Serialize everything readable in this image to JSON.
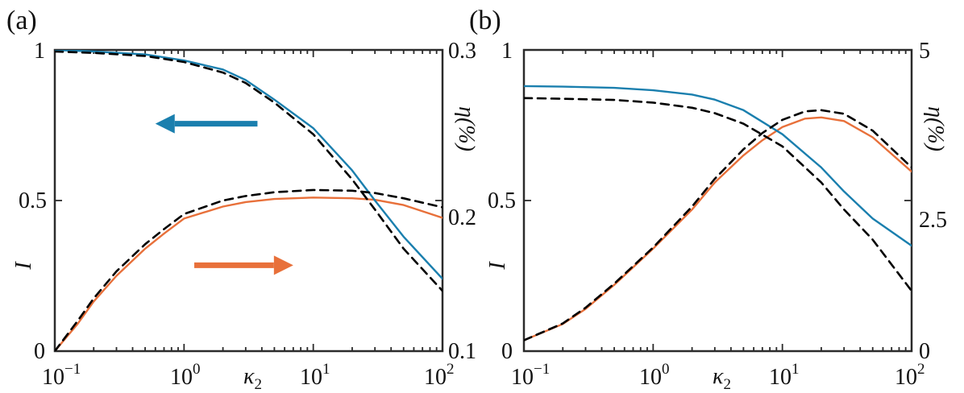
{
  "colors": {
    "blue": "#1a7fae",
    "orange": "#e8703a",
    "dashed": "#000000",
    "axis": "#2b2b2b"
  },
  "chart_data": [
    {
      "panel_label": "(a)",
      "type": "line",
      "xscale": "log",
      "xlim": [
        0.1,
        100
      ],
      "xlabel": "κ",
      "xlabel_sub": "2",
      "x_ticks": [
        {
          "value": 0.1,
          "base": "10",
          "exp": "−1"
        },
        {
          "value": 1,
          "base": "10",
          "exp": "0"
        },
        {
          "value": 10,
          "base": "10",
          "exp": "1"
        },
        {
          "value": 100,
          "base": "10",
          "exp": "2"
        }
      ],
      "left_axis": {
        "label": "I",
        "ylim": [
          0,
          1
        ],
        "ticks": [
          {
            "value": 0,
            "label": "0"
          },
          {
            "value": 0.5,
            "label": "0.5"
          },
          {
            "value": 1,
            "label": "1"
          }
        ]
      },
      "right_axis": {
        "label": "η(%)",
        "ylim": [
          0.1,
          0.3
        ],
        "ticks": [
          {
            "value": 0.1,
            "label": "0.1"
          },
          {
            "value": 0.2,
            "label": "0.2"
          },
          {
            "value": 0.3,
            "label": "0.3"
          }
        ]
      },
      "series": [
        {
          "name": "I (solid)",
          "axis": "left",
          "color": "blue",
          "style": "solid",
          "x": [
            0.1,
            0.2,
            0.5,
            1,
            2,
            3,
            5,
            10,
            20,
            30,
            50,
            100
          ],
          "y": [
            1.0,
            0.995,
            0.985,
            0.965,
            0.935,
            0.9,
            0.835,
            0.74,
            0.6,
            0.5,
            0.38,
            0.24
          ]
        },
        {
          "name": "I (dashed)",
          "axis": "left",
          "color": "dashed",
          "style": "dashed",
          "x": [
            0.1,
            0.2,
            0.5,
            1,
            2,
            3,
            5,
            10,
            20,
            30,
            50,
            100
          ],
          "y": [
            0.995,
            0.99,
            0.98,
            0.96,
            0.925,
            0.89,
            0.825,
            0.72,
            0.57,
            0.47,
            0.34,
            0.2
          ]
        },
        {
          "name": "η (solid)",
          "axis": "right",
          "color": "orange",
          "style": "solid",
          "x": [
            0.1,
            0.15,
            0.2,
            0.3,
            0.5,
            0.7,
            1,
            2,
            3,
            5,
            10,
            20,
            30,
            50,
            100
          ],
          "y": [
            0.1,
            0.118,
            0.133,
            0.15,
            0.168,
            0.178,
            0.188,
            0.196,
            0.199,
            0.201,
            0.202,
            0.2015,
            0.2005,
            0.197,
            0.1885
          ]
        },
        {
          "name": "η (dashed)",
          "axis": "right",
          "color": "dashed",
          "style": "dashed",
          "x": [
            0.1,
            0.15,
            0.2,
            0.3,
            0.5,
            0.7,
            1,
            2,
            3,
            5,
            10,
            20,
            30,
            50,
            100
          ],
          "y": [
            0.1,
            0.12,
            0.135,
            0.153,
            0.171,
            0.181,
            0.191,
            0.2,
            0.203,
            0.2055,
            0.207,
            0.2065,
            0.205,
            0.2015,
            0.1955
          ]
        }
      ],
      "arrows": [
        {
          "name": "left-axis-arrow",
          "color": "blue",
          "direction": "left",
          "from": {
            "x": 3.7,
            "y": 0.755
          },
          "to": {
            "x": 0.6,
            "y": 0.755
          }
        },
        {
          "name": "right-axis-arrow",
          "color": "orange",
          "direction": "right",
          "from": {
            "x": 1.2,
            "y": 0.285
          },
          "to": {
            "x": 7.0,
            "y": 0.285
          }
        }
      ]
    },
    {
      "panel_label": "(b)",
      "type": "line",
      "xscale": "log",
      "xlim": [
        0.1,
        100
      ],
      "xlabel": "κ",
      "xlabel_sub": "2",
      "x_ticks": [
        {
          "value": 0.1,
          "base": "10",
          "exp": "−1"
        },
        {
          "value": 1,
          "base": "10",
          "exp": "0"
        },
        {
          "value": 10,
          "base": "10",
          "exp": "1"
        },
        {
          "value": 100,
          "base": "10",
          "exp": "2"
        }
      ],
      "left_axis": {
        "label": "I",
        "ylim": [
          0,
          1
        ],
        "ticks": [
          {
            "value": 0,
            "label": "0"
          },
          {
            "value": 0.5,
            "label": "0.5"
          },
          {
            "value": 1,
            "label": "1"
          }
        ]
      },
      "right_axis": {
        "label": "η(%)",
        "ylim": [
          0,
          5
        ],
        "ticks": [
          {
            "value": 0,
            "label": "0"
          },
          {
            "value": 2.5,
            "label": "2.5"
          },
          {
            "value": 5,
            "label": "5"
          }
        ]
      },
      "series": [
        {
          "name": "I (solid)",
          "axis": "left",
          "color": "blue",
          "style": "solid",
          "x": [
            0.1,
            0.2,
            0.5,
            1,
            2,
            3,
            5,
            10,
            20,
            30,
            50,
            100
          ],
          "y": [
            0.88,
            0.878,
            0.874,
            0.866,
            0.852,
            0.835,
            0.8,
            0.72,
            0.61,
            0.53,
            0.44,
            0.35
          ]
        },
        {
          "name": "I (dashed)",
          "axis": "left",
          "color": "dashed",
          "style": "dashed",
          "x": [
            0.1,
            0.2,
            0.5,
            1,
            2,
            3,
            5,
            10,
            20,
            30,
            50,
            100
          ],
          "y": [
            0.84,
            0.838,
            0.834,
            0.825,
            0.808,
            0.79,
            0.755,
            0.68,
            0.56,
            0.47,
            0.37,
            0.2
          ]
        },
        {
          "name": "η (solid)",
          "axis": "right",
          "color": "orange",
          "style": "solid",
          "x": [
            0.1,
            0.2,
            0.3,
            0.5,
            1,
            2,
            3,
            5,
            7,
            10,
            15,
            20,
            30,
            50,
            100
          ],
          "y": [
            0.18,
            0.45,
            0.7,
            1.1,
            1.7,
            2.35,
            2.8,
            3.25,
            3.5,
            3.72,
            3.86,
            3.88,
            3.82,
            3.55,
            2.98
          ]
        },
        {
          "name": "η (dashed)",
          "axis": "right",
          "color": "dashed",
          "style": "dashed",
          "x": [
            0.1,
            0.2,
            0.3,
            0.5,
            1,
            2,
            3,
            5,
            7,
            10,
            15,
            20,
            30,
            50,
            100
          ],
          "y": [
            0.18,
            0.46,
            0.72,
            1.12,
            1.72,
            2.4,
            2.86,
            3.35,
            3.62,
            3.84,
            3.98,
            4.0,
            3.94,
            3.66,
            3.05
          ]
        }
      ],
      "arrows": []
    }
  ]
}
